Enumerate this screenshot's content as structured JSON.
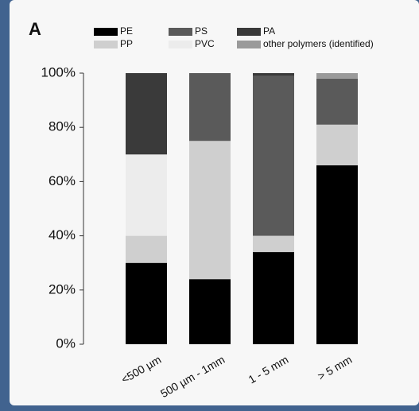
{
  "chart_data": {
    "type": "stacked_bar",
    "title": "A",
    "categories": [
      "<500 µm",
      "500 µm - 1mm",
      "1 - 5 mm",
      "> 5 mm"
    ],
    "series": [
      {
        "name": "PE",
        "color": "#000000",
        "values": [
          30,
          24,
          34,
          66
        ]
      },
      {
        "name": "PP",
        "color": "#cfcfcf",
        "values": [
          10,
          51,
          6,
          15
        ]
      },
      {
        "name": "PVC",
        "color": "#ececec",
        "values": [
          30,
          0,
          0,
          0
        ]
      },
      {
        "name": "PS",
        "color": "#5a5a5a",
        "values": [
          0,
          25,
          59,
          17
        ]
      },
      {
        "name": "PA",
        "color": "#3a3a3a",
        "values": [
          30,
          0,
          1,
          0
        ]
      },
      {
        "name": "other polymers (identified)",
        "color": "#9a9a9a",
        "values": [
          0,
          0,
          0,
          2
        ]
      }
    ],
    "ylim": [
      0,
      100
    ],
    "yticks": [
      {
        "value": 0,
        "label": "0%"
      },
      {
        "value": 20,
        "label": "20%"
      },
      {
        "value": 40,
        "label": "40%"
      },
      {
        "value": 60,
        "label": "60%"
      },
      {
        "value": 80,
        "label": "80%"
      },
      {
        "value": 100,
        "label": "100%"
      }
    ]
  }
}
